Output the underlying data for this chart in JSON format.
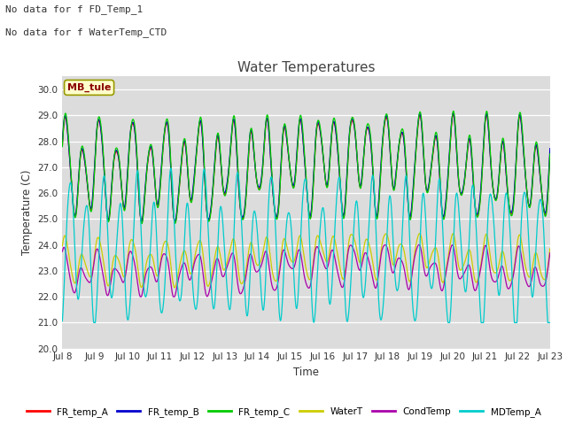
{
  "title": "Water Temperatures",
  "ylabel": "Temperature (C)",
  "xlabel": "Time",
  "ylim": [
    20.0,
    30.5
  ],
  "yticks": [
    20.0,
    21.0,
    22.0,
    23.0,
    24.0,
    25.0,
    26.0,
    27.0,
    28.0,
    29.0,
    30.0
  ],
  "bg_color": "#dcdcdc",
  "fig_color": "#ffffff",
  "text_annotations": [
    "No data for f FD_Temp_1",
    "No data for f WaterTemp_CTD"
  ],
  "mb_tule_label": "MB_tule",
  "series_colors": {
    "FR_temp_A": "#ff0000",
    "FR_temp_B": "#0000cc",
    "FR_temp_C": "#00cc00",
    "WaterT": "#cccc00",
    "CondTemp": "#aa00aa",
    "MDTemp_A": "#00cccc"
  },
  "legend_labels": [
    "FR_temp_A",
    "FR_temp_B",
    "FR_temp_C",
    "WaterT",
    "CondTemp",
    "MDTemp_A"
  ],
  "xtick_labels": [
    "Jul 8",
    "Jul 9",
    "Jul 10",
    "Jul 11",
    "Jul 12",
    "Jul 13",
    "Jul 14",
    "Jul 15",
    "Jul 16",
    "Jul 17",
    "Jul 18",
    "Jul 19",
    "Jul 20",
    "Jul 21",
    "Jul 22",
    "Jul 23"
  ],
  "n_points": 5000,
  "t_days": 15
}
